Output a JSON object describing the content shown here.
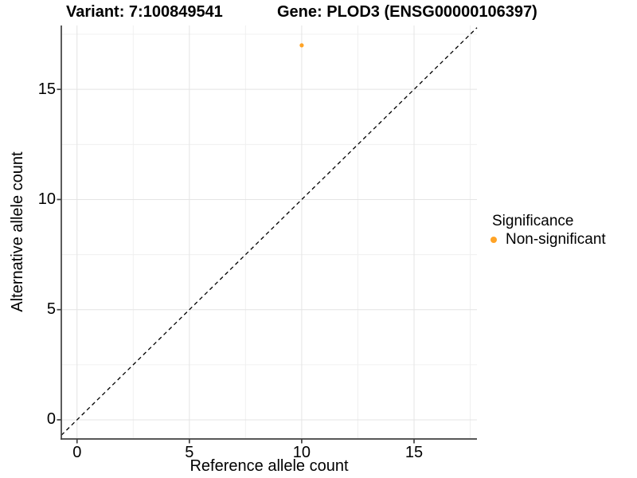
{
  "titles": {
    "variant": "Variant: 7:100849541",
    "gene": "Gene: PLOD3 (ENSG00000106397)"
  },
  "chart_data": {
    "type": "scatter",
    "title_left": "Variant: 7:100849541",
    "title_right": "Gene: PLOD3 (ENSG00000106397)",
    "xlabel": "Reference allele count",
    "ylabel": "Alternative allele count",
    "xlim": [
      -0.7,
      17.8
    ],
    "ylim": [
      -0.87,
      17.9
    ],
    "x_major_ticks": [
      0,
      5,
      10,
      15
    ],
    "y_major_ticks": [
      0,
      5,
      10,
      15
    ],
    "x_minor_ticks": [
      2.5,
      7.5,
      12.5,
      17.5
    ],
    "y_minor_ticks": [
      2.5,
      7.5,
      12.5,
      17.5
    ],
    "grid": true,
    "points": [
      {
        "x": 10,
        "y": 17,
        "series": "Non-significant",
        "color": "#FFA326",
        "radius": 2.6
      }
    ],
    "abline": {
      "slope": 1,
      "intercept": 0,
      "style": "dashed",
      "color": "#000000"
    },
    "legend": {
      "title": "Significance",
      "position": "right",
      "items": [
        {
          "label": "Non-significant",
          "color": "#FFA326"
        }
      ]
    },
    "colors": {
      "background": "#FFFFFF",
      "grid_major": "#E4E4E4",
      "grid_minor": "#F0F0F0",
      "axis_line": "#404040",
      "tick_label": "#000000",
      "point": "#FFA326"
    }
  }
}
